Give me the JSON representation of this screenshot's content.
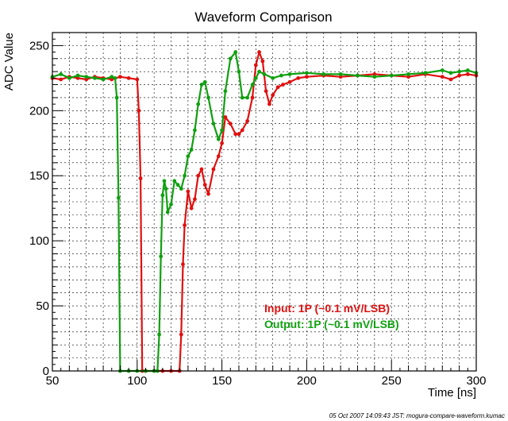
{
  "chart_data": {
    "type": "line",
    "title": "Waveform Comparison",
    "xlabel": "Time [ns]",
    "ylabel": "ADC Value",
    "xlim": [
      50,
      300
    ],
    "ylim": [
      0,
      260
    ],
    "x_ticks": [
      50,
      100,
      150,
      200,
      250,
      300
    ],
    "y_ticks": [
      0,
      50,
      100,
      150,
      200,
      250
    ],
    "grid": true,
    "legend_position": "lower-right",
    "series": [
      {
        "name": "Input: 1P  (~0.1 mV/LSB)",
        "color": "#e01010",
        "x": [
          50,
          55,
          60,
          65,
          70,
          75,
          80,
          85,
          90,
          95,
          100,
          101,
          102,
          103,
          105,
          110,
          115,
          120,
          125,
          126,
          127,
          128,
          130,
          132,
          134,
          136,
          138,
          140,
          142,
          145,
          148,
          150,
          152,
          155,
          158,
          160,
          162,
          165,
          168,
          170,
          172,
          174,
          176,
          178,
          180,
          183,
          186,
          190,
          195,
          200,
          210,
          220,
          230,
          240,
          250,
          260,
          270,
          280,
          285,
          290,
          295,
          300
        ],
        "y": [
          225,
          224,
          226,
          225,
          224,
          226,
          225,
          224,
          226,
          225,
          224,
          200,
          148,
          0,
          0,
          0,
          0,
          0,
          0,
          28,
          82,
          112,
          138,
          125,
          132,
          150,
          155,
          143,
          136,
          155,
          165,
          175,
          195,
          190,
          182,
          182,
          185,
          192,
          210,
          235,
          245,
          238,
          215,
          205,
          212,
          218,
          220,
          222,
          225,
          226,
          227,
          226,
          227,
          228,
          227,
          226,
          228,
          226,
          224,
          227,
          228,
          227
        ]
      },
      {
        "name": "Output: 1P  (~0.1 mV/LSB)",
        "color": "#10a010",
        "x": [
          50,
          55,
          60,
          65,
          70,
          75,
          80,
          85,
          87,
          88,
          89,
          90,
          95,
          100,
          105,
          110,
          112,
          113,
          114,
          115,
          116,
          117,
          118,
          120,
          122,
          124,
          126,
          128,
          130,
          132,
          134,
          136,
          138,
          140,
          142,
          145,
          148,
          150,
          152,
          155,
          158,
          160,
          162,
          165,
          168,
          170,
          172,
          175,
          180,
          185,
          190,
          200,
          210,
          220,
          230,
          240,
          250,
          260,
          270,
          280,
          285,
          290,
          295,
          300
        ],
        "y": [
          226,
          228,
          225,
          227,
          226,
          225,
          224,
          226,
          225,
          210,
          133,
          0,
          0,
          0,
          0,
          0,
          0,
          28,
          88,
          135,
          146,
          140,
          122,
          128,
          146,
          143,
          140,
          150,
          165,
          170,
          185,
          205,
          220,
          222,
          210,
          190,
          178,
          185,
          215,
          240,
          245,
          230,
          210,
          210,
          220,
          225,
          230,
          228,
          225,
          227,
          228,
          229,
          228,
          228,
          227,
          226,
          227,
          228,
          229,
          231,
          229,
          230,
          231,
          229
        ]
      }
    ],
    "footer": "05 Oct 2007 14:09:43 JST: mogura-compare-waveform.kumac"
  }
}
